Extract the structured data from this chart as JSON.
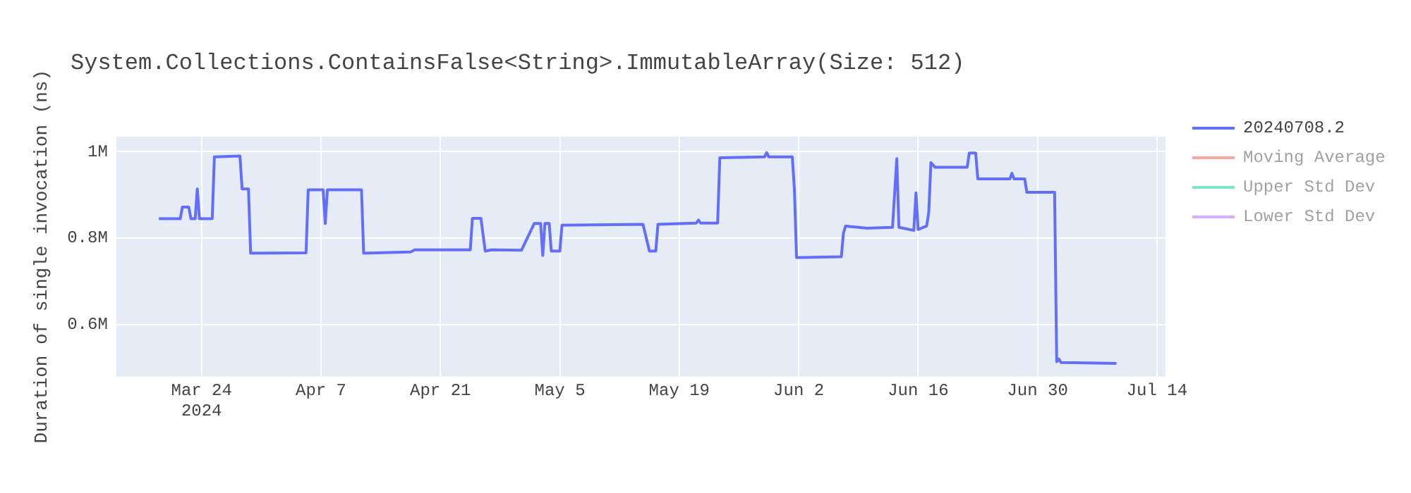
{
  "chart_data": {
    "type": "line",
    "title": "System.Collections.ContainsFalse<String>.ImmutableArray(Size: 512)",
    "ylabel": "Duration of single invocation (ns)",
    "xlim": [
      "2024-03-14",
      "2024-07-15"
    ],
    "xticks": [
      {
        "value": "2024-03-24",
        "label": "Mar 24\n2024"
      },
      {
        "value": "2024-04-07",
        "label": "Apr 7"
      },
      {
        "value": "2024-04-21",
        "label": "Apr 21"
      },
      {
        "value": "2024-05-05",
        "label": "May 5"
      },
      {
        "value": "2024-05-19",
        "label": "May 19"
      },
      {
        "value": "2024-06-02",
        "label": "Jun 2"
      },
      {
        "value": "2024-06-16",
        "label": "Jun 16"
      },
      {
        "value": "2024-06-30",
        "label": "Jun 30"
      },
      {
        "value": "2024-07-14",
        "label": "Jul 14"
      }
    ],
    "ylim": [
      480000,
      1035000
    ],
    "yticks": [
      {
        "value": 600000,
        "label": "0.6M"
      },
      {
        "value": 800000,
        "label": "0.8M"
      },
      {
        "value": 1000000,
        "label": "1M"
      }
    ],
    "grid": true,
    "legend": "right",
    "marker": "none",
    "line_style": "solid",
    "series": [
      {
        "name": "20240708.2",
        "color": "#636efa",
        "x": [
          "2024-03-19T00:00",
          "2024-03-21T12:00",
          "2024-03-21T18:00",
          "2024-03-22T12:00",
          "2024-03-22T18:00",
          "2024-03-23T06:00",
          "2024-03-23T12:00",
          "2024-03-23T18:00",
          "2024-03-25T06:00",
          "2024-03-25T12:00",
          "2024-03-28T12:00",
          "2024-03-28T18:00",
          "2024-03-29T12:00",
          "2024-03-29T18:00",
          "2024-04-05T06:00",
          "2024-04-05T12:00",
          "2024-04-07T06:00",
          "2024-04-07T12:00",
          "2024-04-07T18:00",
          "2024-04-11T18:00",
          "2024-04-12T00:00",
          "2024-04-17T12:00",
          "2024-04-18T00:00",
          "2024-04-24T12:00",
          "2024-04-24T18:00",
          "2024-04-25T18:00",
          "2024-04-26T06:00",
          "2024-04-27T00:00",
          "2024-04-30T12:00",
          "2024-05-02T00:00",
          "2024-05-02T18:00",
          "2024-05-03T00:00",
          "2024-05-03T06:00",
          "2024-05-03T18:00",
          "2024-05-04T00:00",
          "2024-05-05T00:00",
          "2024-05-05T06:00",
          "2024-05-14T18:00",
          "2024-05-15T12:00",
          "2024-05-16T06:00",
          "2024-05-16T12:00",
          "2024-05-21T00:00",
          "2024-05-21T06:00",
          "2024-05-21T12:00",
          "2024-05-23T12:00",
          "2024-05-23T18:00",
          "2024-05-29T00:00",
          "2024-05-29T06:00",
          "2024-05-29T12:00",
          "2024-06-01T06:00",
          "2024-06-01T12:00",
          "2024-06-01T18:00",
          "2024-06-07T00:00",
          "2024-06-07T06:00",
          "2024-06-07T12:00",
          "2024-06-10T00:00",
          "2024-06-13T00:00",
          "2024-06-13T12:00",
          "2024-06-13T18:00",
          "2024-06-15T12:00",
          "2024-06-15T18:00",
          "2024-06-16T00:00",
          "2024-06-17T00:00",
          "2024-06-17T06:00",
          "2024-06-17T12:00",
          "2024-06-18T00:00",
          "2024-06-21T18:00",
          "2024-06-22T00:00",
          "2024-06-22T18:00",
          "2024-06-23T00:00",
          "2024-06-26T18:00",
          "2024-06-27T00:00",
          "2024-06-27T06:00",
          "2024-06-28T12:00",
          "2024-06-28T18:00",
          "2024-07-02T00:00",
          "2024-07-02T06:00",
          "2024-07-02T12:00",
          "2024-07-02T18:00",
          "2024-07-09T06:00"
        ],
        "values": [
          845000,
          845000,
          872000,
          872000,
          845000,
          845000,
          914000,
          845000,
          845000,
          988000,
          990000,
          914000,
          914000,
          765000,
          766000,
          912000,
          912000,
          834000,
          912000,
          912000,
          765000,
          768000,
          773000,
          773000,
          846000,
          846000,
          770000,
          773000,
          772000,
          834000,
          834000,
          760000,
          834000,
          834000,
          770000,
          770000,
          830000,
          832000,
          770000,
          770000,
          832000,
          835000,
          842000,
          835000,
          835000,
          986000,
          988000,
          998000,
          988000,
          988000,
          912000,
          755000,
          757000,
          812000,
          828000,
          823000,
          825000,
          984000,
          825000,
          818000,
          905000,
          820000,
          828000,
          860000,
          975000,
          964000,
          964000,
          997000,
          997000,
          937000,
          937000,
          950000,
          937000,
          937000,
          906000,
          906000,
          514000,
          520000,
          512000,
          510000
        ]
      },
      {
        "name": "Moving Average",
        "color": "#ef553b"
      },
      {
        "name": "Upper Std Dev",
        "color": "#00cc96"
      },
      {
        "name": "Lower Std Dev",
        "color": "#ab63fa"
      }
    ]
  }
}
